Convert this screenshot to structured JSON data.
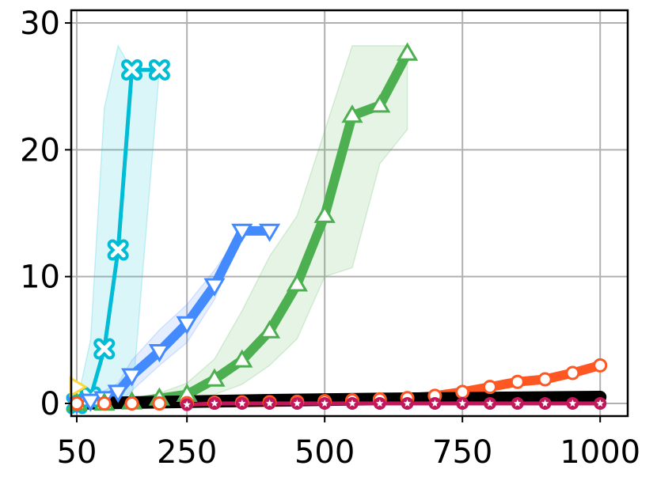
{
  "chart_data": {
    "type": "line",
    "title": "",
    "xlabel": "",
    "ylabel": "",
    "xlim": [
      40,
      1050
    ],
    "ylim": [
      -1,
      31
    ],
    "grid": true,
    "x_ticks": [
      {
        "value": 50,
        "label": "50"
      },
      {
        "value": 250,
        "label": "250"
      },
      {
        "value": 500,
        "label": "500"
      },
      {
        "value": 750,
        "label": "750"
      },
      {
        "value": 1000,
        "label": "1000"
      }
    ],
    "y_ticks": [
      {
        "value": 0,
        "label": "0"
      },
      {
        "value": 10,
        "label": "10"
      },
      {
        "value": 20,
        "label": "20"
      },
      {
        "value": 30,
        "label": "30"
      }
    ],
    "series": [
      {
        "color": "#00bcd4",
        "marker": "x-circle",
        "line": "normal",
        "x": [
          50,
          75,
          100,
          125,
          150,
          200
        ],
        "y": [
          0,
          0.5,
          4.3,
          12.1,
          26.3,
          26.3
        ],
        "band_low": [
          0,
          0,
          0,
          0,
          0,
          26.3
        ],
        "band_high": [
          0,
          5,
          23.3,
          28.2,
          26.3,
          26.3
        ]
      },
      {
        "color": "#448aff",
        "marker": "triangle-down",
        "line": "thick",
        "x": [
          50,
          75,
          100,
          125,
          150,
          200,
          250,
          300,
          350,
          400
        ],
        "y": [
          0,
          0.2,
          0.4,
          0.9,
          2.2,
          4.1,
          6.3,
          9.3,
          13.6,
          13.6
        ],
        "band_low": [
          0,
          0,
          0,
          0,
          1,
          3,
          4.8,
          8.2,
          13.6,
          13.6
        ],
        "band_high": [
          0,
          0.5,
          1,
          1.6,
          3.4,
          5.8,
          7.8,
          10.5,
          13.6,
          13.6
        ]
      },
      {
        "color": "#4caf50",
        "marker": "triangle-up",
        "line": "thick",
        "x": [
          50,
          100,
          150,
          200,
          250,
          300,
          350,
          400,
          450,
          500,
          550,
          600,
          650
        ],
        "y": [
          0,
          0,
          0.1,
          0.4,
          0.7,
          1.9,
          3.4,
          5.7,
          9.4,
          14.8,
          22.7,
          23.5,
          27.6
        ],
        "band_low": [
          0,
          0,
          0,
          0.1,
          0.2,
          0.7,
          1.5,
          3,
          5.1,
          10,
          10.7,
          18.9,
          21.6
        ],
        "band_high": [
          0,
          0,
          0.3,
          0.8,
          1.6,
          3.5,
          7.3,
          11.6,
          14.8,
          21.5,
          28.2,
          28.2,
          28.2
        ]
      },
      {
        "color": "#ff5722",
        "marker": "circle",
        "line": "thick",
        "x": [
          50,
          100,
          150,
          200,
          250,
          300,
          350,
          400,
          450,
          500,
          550,
          600,
          650,
          700,
          750,
          800,
          850,
          900,
          950,
          1000
        ],
        "y": [
          0,
          0,
          0,
          0,
          0.02,
          0.05,
          0.08,
          0.1,
          0.13,
          0.18,
          0.24,
          0.32,
          0.42,
          0.6,
          0.9,
          1.3,
          1.7,
          1.9,
          2.4,
          3.0
        ]
      },
      {
        "color": "#000000",
        "marker": "none",
        "line": "extra-thick",
        "x": [
          50,
          200,
          400,
          600,
          800,
          1000
        ],
        "y": [
          0,
          0.1,
          0.25,
          0.35,
          0.42,
          0.5
        ]
      },
      {
        "color": "#c2185b",
        "marker": "star",
        "line": "normal",
        "x": [
          250,
          300,
          350,
          400,
          450,
          500,
          550,
          600,
          650,
          700,
          750,
          800,
          850,
          900,
          950,
          1000
        ],
        "y": [
          -0.1,
          0,
          0,
          0,
          0,
          0,
          0,
          0,
          0,
          0,
          0,
          0,
          0,
          0,
          0,
          0
        ]
      },
      {
        "color": "#fdd835",
        "marker": "triangle-right",
        "line": "none",
        "x": [
          50
        ],
        "y": [
          1.3
        ]
      }
    ]
  }
}
